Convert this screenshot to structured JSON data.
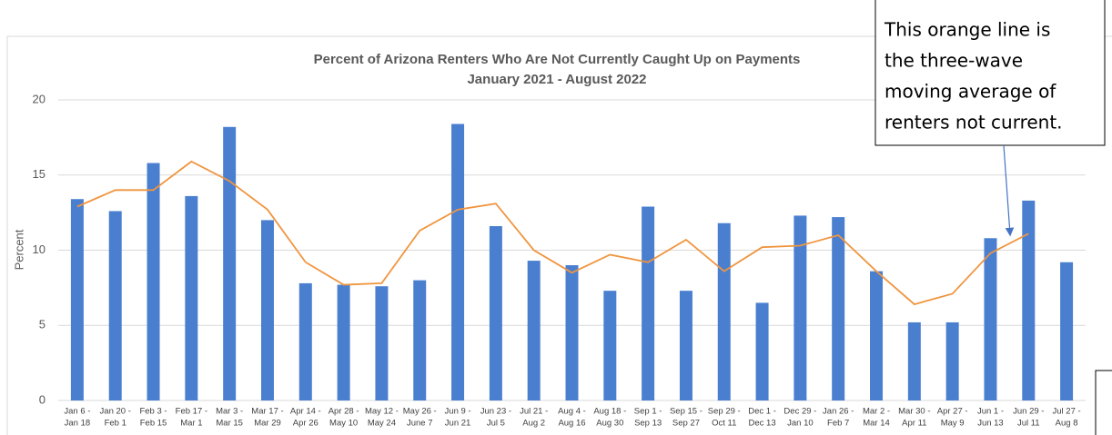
{
  "chart_data": {
    "type": "bar",
    "title": [
      "Percent of Arizona Renters Who Are Not Currently Caught Up on Payments",
      "January 2021 - August 2022"
    ],
    "y_label": "Percent",
    "annotation": [
      "This orange line is",
      "the three-wave",
      "moving average of",
      "renters not current."
    ],
    "categories": [
      [
        "Jan 6 -",
        "Jan 18"
      ],
      [
        "Jan 20 -",
        "Feb 1"
      ],
      [
        "Feb 3 -",
        "Feb 15"
      ],
      [
        "Feb 17 -",
        "Mar 1"
      ],
      [
        "Mar 3 -",
        "Mar 15"
      ],
      [
        "Mar 17 -",
        "Mar 29"
      ],
      [
        "Apr 14 -",
        "Apr 26"
      ],
      [
        "Apr 28 -",
        "May 10"
      ],
      [
        "May 12 -",
        "May 24"
      ],
      [
        "May 26 -",
        "June 7"
      ],
      [
        "Jun 9 -",
        "Jun 21"
      ],
      [
        "Jun 23 -",
        "Jul 5"
      ],
      [
        "Jul 21 -",
        "Aug 2"
      ],
      [
        "Aug 4 -",
        "Aug 16"
      ],
      [
        "Aug 18 -",
        "Aug 30"
      ],
      [
        "Sep 1 -",
        "Sep 13"
      ],
      [
        "Sep 15 -",
        "Sep 27"
      ],
      [
        "Sep 29 -",
        "Oct 11"
      ],
      [
        "Dec 1 -",
        "Dec 13"
      ],
      [
        "Dec 29 -",
        "Jan 10"
      ],
      [
        "Jan 26 -",
        "Feb 7"
      ],
      [
        "Mar 2 -",
        "Mar 14"
      ],
      [
        "Mar 30 -",
        "Apr 11"
      ],
      [
        "Apr 27 -",
        "May 9"
      ],
      [
        "Jun 1 -",
        "Jun 13"
      ],
      [
        "Jun 29 -",
        "Jul 11"
      ],
      [
        "Jul 27 -",
        "Aug 8"
      ]
    ],
    "series": [
      {
        "type": "bar",
        "color": "#4a7fd0",
        "values": [
          13.4,
          12.6,
          15.8,
          13.6,
          18.2,
          12.0,
          7.8,
          7.7,
          7.6,
          8.0,
          18.4,
          11.6,
          9.3,
          9.0,
          7.3,
          12.9,
          7.3,
          11.8,
          6.5,
          12.3,
          12.2,
          8.6,
          5.2,
          5.2,
          10.8,
          13.3,
          9.2
        ]
      },
      {
        "type": "line",
        "color": "#f0953f",
        "values": [
          12.9,
          14.0,
          14.0,
          15.9,
          14.6,
          12.7,
          9.2,
          7.7,
          7.8,
          11.3,
          12.7,
          13.1,
          10.0,
          8.5,
          9.7,
          9.2,
          10.7,
          8.6,
          10.2,
          10.3,
          11.0,
          8.6,
          6.4,
          7.1,
          9.8,
          11.1,
          null
        ]
      }
    ],
    "ylim": [
      0,
      20
    ],
    "yticks": [
      0,
      5,
      10,
      15,
      20
    ],
    "grid": true
  }
}
